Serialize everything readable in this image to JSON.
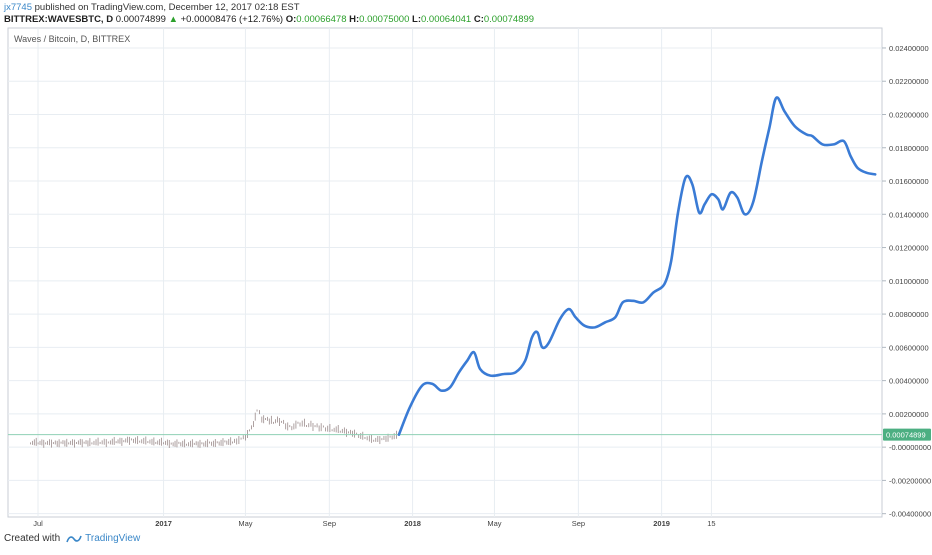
{
  "header": {
    "user": "jx7745",
    "published_text": " published on TradingView.com, December 12, 2017 02:18 EST"
  },
  "ticker": {
    "symbol": "BITTREX:WAVESBTC, D",
    "last": "0.00074899",
    "change_icon": "triangle-up-icon",
    "change": "+0.00008476 (+12.76%)",
    "o_label": "O:",
    "o_value": "0.00066478",
    "h_label": "H:",
    "h_value": "0.00075000",
    "l_label": "L:",
    "l_value": "0.00064041",
    "c_label": "C:",
    "c_value": "0.00074899"
  },
  "footer": {
    "created_with": "Created with",
    "brand": "TradingView",
    "brand_icon": "tradingview-logo-icon"
  },
  "colors": {
    "drawing": "#3a7bd5",
    "price_line": "#8fd0b4",
    "price_badge": "#4caf82",
    "candle": "#9a8a8a",
    "grid": "#e8edf2",
    "brand": "#3a87c8"
  },
  "chart_data": {
    "type": "line",
    "title": "Waves / Bitcoin, D, BITTREX",
    "ylim": [
      -0.0042,
      0.0252
    ],
    "y_ticks": [
      "0.02400000",
      "0.02200000",
      "0.02000000",
      "0.01800000",
      "0.01600000",
      "0.01400000",
      "0.01200000",
      "0.01000000",
      "0.00800000",
      "0.00600000",
      "0.00400000",
      "0.00200000",
      "-0.00000000",
      "-0.00200000",
      "-0.00400000"
    ],
    "y_tick_values": [
      0.024,
      0.022,
      0.02,
      0.018,
      0.016,
      0.014,
      0.012,
      0.01,
      0.008,
      0.006,
      0.004,
      0.002,
      0.0,
      -0.002,
      -0.004
    ],
    "x_ticks": [
      "Jul",
      "2017",
      "May",
      "Sep",
      "2018",
      "May",
      "Sep",
      "2019",
      "15"
    ],
    "x_tick_dates": [
      "2016-07-01",
      "2017-01-01",
      "2017-05-01",
      "2017-09-01",
      "2018-01-01",
      "2018-05-01",
      "2018-09-01",
      "2019-01-01",
      "2019-03-15"
    ],
    "xlim": [
      "2016-05-18",
      "2019-11-20"
    ],
    "current_price": 0.00074899,
    "current_price_label": "0.00074899",
    "series": [
      {
        "type": "candles",
        "points": [
          [
            "2016-06-20",
            0.00028
          ],
          [
            "2016-07-15",
            0.00024
          ],
          [
            "2016-08-15",
            0.00026
          ],
          [
            "2016-09-15",
            0.00027
          ],
          [
            "2016-10-15",
            0.0003
          ],
          [
            "2016-11-15",
            0.00042
          ],
          [
            "2016-12-15",
            0.00032
          ],
          [
            "2017-01-15",
            0.00022
          ],
          [
            "2017-02-15",
            0.00018
          ],
          [
            "2017-03-15",
            0.00024
          ],
          [
            "2017-04-15",
            0.00034
          ],
          [
            "2017-05-01",
            0.0006
          ],
          [
            "2017-05-10",
            0.0011
          ],
          [
            "2017-05-18",
            0.0022
          ],
          [
            "2017-05-25",
            0.0018
          ],
          [
            "2017-06-05",
            0.0015
          ],
          [
            "2017-06-20",
            0.0016
          ],
          [
            "2017-07-05",
            0.0012
          ],
          [
            "2017-07-20",
            0.0014
          ],
          [
            "2017-08-05",
            0.0013
          ],
          [
            "2017-08-20",
            0.0012
          ],
          [
            "2017-09-05",
            0.0011
          ],
          [
            "2017-09-20",
            0.00095
          ],
          [
            "2017-10-05",
            0.00085
          ],
          [
            "2017-10-20",
            0.00065
          ],
          [
            "2017-11-05",
            0.0004
          ],
          [
            "2017-11-20",
            0.0005
          ],
          [
            "2017-12-05",
            0.00066
          ],
          [
            "2017-12-12",
            0.00075
          ]
        ]
      },
      {
        "type": "drawing",
        "points": [
          [
            "2017-12-12",
            0.00075
          ],
          [
            "2017-12-28",
            0.0024
          ],
          [
            "2018-01-15",
            0.0037
          ],
          [
            "2018-01-30",
            0.0038
          ],
          [
            "2018-02-12",
            0.0034
          ],
          [
            "2018-02-25",
            0.0036
          ],
          [
            "2018-03-10",
            0.0045
          ],
          [
            "2018-03-22",
            0.0052
          ],
          [
            "2018-04-01",
            0.0057
          ],
          [
            "2018-04-10",
            0.0047
          ],
          [
            "2018-04-25",
            0.0043
          ],
          [
            "2018-05-15",
            0.0044
          ],
          [
            "2018-06-01",
            0.0045
          ],
          [
            "2018-06-15",
            0.0052
          ],
          [
            "2018-06-25",
            0.0066
          ],
          [
            "2018-07-03",
            0.0069
          ],
          [
            "2018-07-10",
            0.006
          ],
          [
            "2018-07-20",
            0.0063
          ],
          [
            "2018-08-05",
            0.0077
          ],
          [
            "2018-08-18",
            0.0083
          ],
          [
            "2018-08-28",
            0.0078
          ],
          [
            "2018-09-10",
            0.0073
          ],
          [
            "2018-09-25",
            0.0072
          ],
          [
            "2018-10-10",
            0.0075
          ],
          [
            "2018-10-25",
            0.0078
          ],
          [
            "2018-11-05",
            0.0087
          ],
          [
            "2018-11-20",
            0.0088
          ],
          [
            "2018-12-05",
            0.0087
          ],
          [
            "2018-12-20",
            0.0093
          ],
          [
            "2019-01-05",
            0.0098
          ],
          [
            "2019-01-15",
            0.0112
          ],
          [
            "2019-01-25",
            0.0141
          ],
          [
            "2019-02-05",
            0.0162
          ],
          [
            "2019-02-15",
            0.0158
          ],
          [
            "2019-02-25",
            0.0141
          ],
          [
            "2019-03-05",
            0.0146
          ],
          [
            "2019-03-15",
            0.0152
          ],
          [
            "2019-03-25",
            0.0149
          ],
          [
            "2019-04-01",
            0.0143
          ],
          [
            "2019-04-12",
            0.0153
          ],
          [
            "2019-04-22",
            0.015
          ],
          [
            "2019-05-03",
            0.014
          ],
          [
            "2019-05-15",
            0.0147
          ],
          [
            "2019-05-28",
            0.0172
          ],
          [
            "2019-06-08",
            0.0192
          ],
          [
            "2019-06-18",
            0.021
          ],
          [
            "2019-06-30",
            0.0202
          ],
          [
            "2019-07-15",
            0.0193
          ],
          [
            "2019-08-01",
            0.0188
          ],
          [
            "2019-08-10",
            0.0187
          ],
          [
            "2019-08-25",
            0.0182
          ],
          [
            "2019-09-10",
            0.0182
          ],
          [
            "2019-09-25",
            0.0184
          ],
          [
            "2019-10-05",
            0.0175
          ],
          [
            "2019-10-15",
            0.0168
          ],
          [
            "2019-10-28",
            0.0165
          ],
          [
            "2019-11-10",
            0.0164
          ]
        ]
      }
    ],
    "grid": true,
    "legend": "none"
  }
}
